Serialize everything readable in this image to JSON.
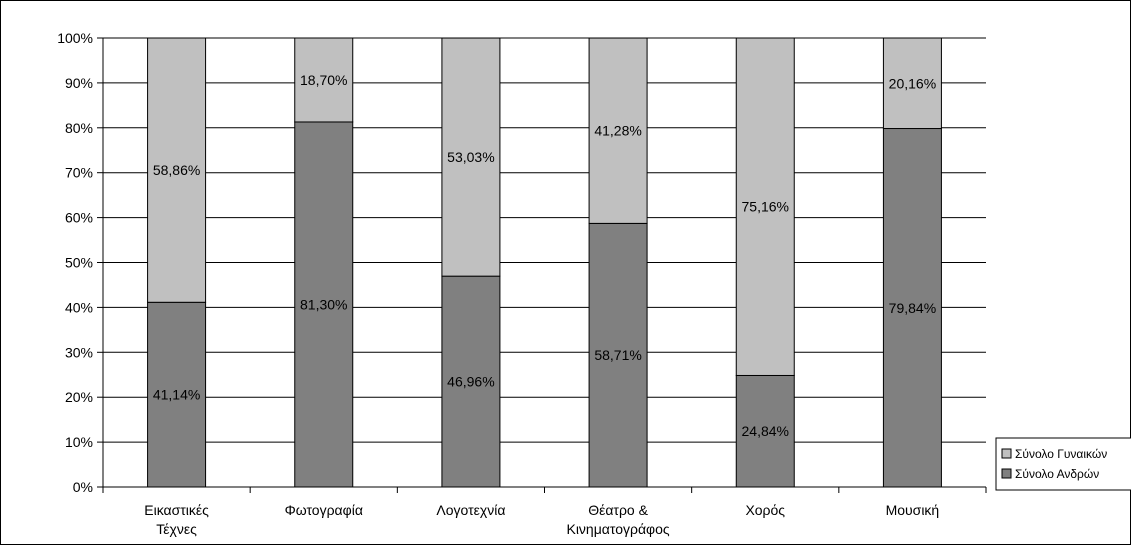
{
  "chart_data": {
    "type": "bar",
    "stacked": "percent",
    "title": "",
    "xlabel": "",
    "ylabel": "",
    "ylim": [
      0,
      100
    ],
    "y_ticks": [
      "0%",
      "10%",
      "20%",
      "30%",
      "40%",
      "50%",
      "60%",
      "70%",
      "80%",
      "90%",
      "100%"
    ],
    "grid": true,
    "legend_position": "right-bottom",
    "categories": [
      [
        "Εικαστικές",
        "Τέχνες"
      ],
      [
        "Φωτογραφία"
      ],
      [
        "Λογοτεχνία"
      ],
      [
        "Θέατρο &",
        "Κινηματογράφος"
      ],
      [
        "Χορός"
      ],
      [
        "Μουσική"
      ]
    ],
    "series": [
      {
        "name": "Σύνολο Ανδρών",
        "color": "#808080",
        "values": [
          41.14,
          81.3,
          46.96,
          58.71,
          24.84,
          79.84
        ],
        "labels": [
          "41,14%",
          "81,30%",
          "46,96%",
          "58,71%",
          "24,84%",
          "79,84%"
        ]
      },
      {
        "name": "Σύνολο Γυναικών",
        "color": "#c0c0c0",
        "values": [
          58.86,
          18.7,
          53.03,
          41.28,
          75.16,
          20.16
        ],
        "labels": [
          "58,86%",
          "18,70%",
          "53,03%",
          "41,28%",
          "75,16%",
          "20,16%"
        ]
      }
    ],
    "legend": [
      "Σύνολο Γυναικών",
      "Σύνολο Ανδρών"
    ]
  }
}
